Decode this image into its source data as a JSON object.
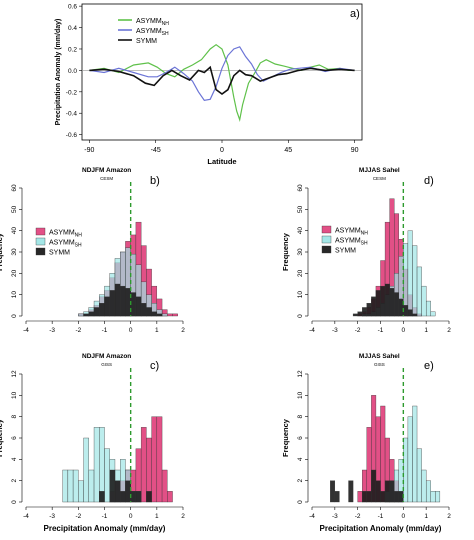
{
  "colors": {
    "nh": "#5fc14a",
    "sh": "#6b74d6",
    "symm": "#111111",
    "asym_nh": "#e0477f",
    "asym_sh": "#9fe6e6",
    "dark": "#1c1c1c",
    "dash": "#2e9a2e"
  },
  "chart_data": [
    {
      "id": "a",
      "type": "line",
      "panel_label": "a)",
      "title": "",
      "xlabel": "Latitude",
      "ylabel": "Precipitation Anomaly (mm/day)",
      "xlim": [
        -95,
        95
      ],
      "ylim": [
        -0.65,
        0.62
      ],
      "xticks": [
        -90,
        -45,
        0,
        45,
        90
      ],
      "yticks": [
        -0.6,
        -0.4,
        -0.2,
        0.0,
        0.2,
        0.4,
        0.6
      ],
      "xtick_labels": [
        "-90",
        "-45",
        "0",
        "45",
        "90"
      ],
      "ytick_labels": [
        "-0.6",
        "-0.4",
        "-0.2",
        "0.0",
        "0.2",
        "0.4",
        "0.6"
      ],
      "legend_position": "top-left",
      "series": [
        {
          "key": "nh",
          "name": "ASYMM",
          "name_sub": "NH",
          "x": [
            -90,
            -80,
            -70,
            -60,
            -50,
            -44,
            -38,
            -32,
            -26,
            -20,
            -14,
            -8,
            -4,
            0,
            4,
            8,
            10,
            12,
            14,
            18,
            22,
            26,
            30,
            36,
            42,
            48,
            54,
            60,
            66,
            72,
            80,
            86,
            90
          ],
          "y": [
            0,
            0.02,
            -0.02,
            0.05,
            0.07,
            0.03,
            -0.03,
            -0.06,
            0.01,
            0.05,
            0.1,
            0.2,
            0.24,
            0.2,
            0.05,
            -0.25,
            -0.38,
            -0.46,
            -0.32,
            -0.12,
            -0.03,
            0.07,
            0.1,
            0.06,
            0.04,
            0.02,
            0,
            0.03,
            0.05,
            0.01,
            0.02,
            0,
            0
          ]
        },
        {
          "key": "sh",
          "name": "ASYMM",
          "name_sub": "SH",
          "x": [
            -90,
            -80,
            -70,
            -60,
            -50,
            -44,
            -38,
            -32,
            -26,
            -20,
            -16,
            -12,
            -8,
            -4,
            0,
            4,
            8,
            12,
            16,
            20,
            24,
            28,
            34,
            40,
            46,
            52,
            60,
            70,
            80,
            90
          ],
          "y": [
            0,
            -0.02,
            0.02,
            -0.02,
            -0.06,
            -0.06,
            -0.02,
            0.03,
            -0.03,
            -0.1,
            -0.2,
            -0.28,
            -0.27,
            -0.15,
            0.02,
            0.14,
            0.2,
            0.22,
            0.13,
            0.06,
            -0.04,
            -0.1,
            -0.06,
            -0.02,
            0.01,
            0.02,
            0.03,
            -0.01,
            0.02,
            0
          ]
        },
        {
          "key": "symm",
          "name": "SYMM",
          "name_sub": "",
          "x": [
            -90,
            -80,
            -70,
            -60,
            -52,
            -46,
            -40,
            -34,
            -28,
            -22,
            -16,
            -12,
            -8,
            -4,
            0,
            4,
            8,
            12,
            16,
            20,
            26,
            32,
            38,
            44,
            52,
            60,
            70,
            80,
            90
          ],
          "y": [
            0,
            0.01,
            -0.01,
            -0.05,
            -0.12,
            -0.14,
            -0.05,
            0.0,
            -0.05,
            -0.09,
            0.0,
            -0.02,
            0.03,
            -0.18,
            -0.22,
            -0.18,
            -0.05,
            0.0,
            -0.04,
            -0.05,
            -0.1,
            -0.07,
            -0.04,
            -0.03,
            0,
            0.02,
            0.0,
            0.01,
            0
          ]
        }
      ]
    },
    {
      "id": "b",
      "type": "histogram",
      "panel_label": "b)",
      "title": "NDJFM Amazon",
      "subtitle": "CESM",
      "xlabel": "",
      "ylabel": "Frequency",
      "xlim": [
        -4,
        2
      ],
      "ylim": [
        0,
        60
      ],
      "xticks": [
        -4,
        -3,
        -2,
        -1,
        0,
        1,
        2
      ],
      "yticks": [
        0,
        10,
        20,
        30,
        40,
        50,
        60
      ],
      "xtick_labels": [
        "-4",
        "-3",
        "-2",
        "-1",
        "0",
        "1",
        "2"
      ],
      "ytick_labels": [
        "0",
        "10",
        "20",
        "30",
        "40",
        "50",
        "60"
      ],
      "legend_position": "left",
      "show_legend": true,
      "bin_start": -2.0,
      "bin_width": 0.2,
      "series": [
        {
          "key": "asym_nh",
          "name": "ASYMM",
          "name_sub": "NH",
          "values": [
            1,
            1,
            3,
            5,
            9,
            12,
            18,
            25,
            30,
            35,
            38,
            44,
            33,
            22,
            14,
            8,
            3,
            1,
            1,
            0
          ]
        },
        {
          "key": "asym_sh",
          "name": "ASYMM",
          "name_sub": "SH",
          "values": [
            1,
            2,
            4,
            7,
            10,
            14,
            20,
            27,
            30,
            32,
            29,
            24,
            16,
            10,
            6,
            3,
            1,
            0,
            0,
            0
          ]
        },
        {
          "key": "symm",
          "name": "SYMM",
          "name_sub": "",
          "values": [
            0,
            1,
            2,
            4,
            6,
            9,
            12,
            15,
            14,
            13,
            11,
            9,
            6,
            4,
            2,
            1,
            0,
            0,
            0,
            0
          ]
        }
      ]
    },
    {
      "id": "d",
      "type": "histogram",
      "panel_label": "d)",
      "title": "MJJAS Sahel",
      "subtitle": "CESM",
      "xlabel": "",
      "ylabel": "Frequency",
      "xlim": [
        -4,
        2
      ],
      "ylim": [
        0,
        60
      ],
      "xticks": [
        -4,
        -3,
        -2,
        -1,
        0,
        1,
        2
      ],
      "yticks": [
        0,
        10,
        20,
        30,
        40,
        50,
        60
      ],
      "xtick_labels": [
        "-4",
        "-3",
        "-2",
        "-1",
        "0",
        "1",
        "2"
      ],
      "ytick_labels": [
        "0",
        "10",
        "20",
        "30",
        "40",
        "50",
        "60"
      ],
      "legend_position": "top-left",
      "show_legend": true,
      "bin_start": -2.2,
      "bin_width": 0.2,
      "series": [
        {
          "key": "asym_nh",
          "name": "ASYMM",
          "name_sub": "NH",
          "values": [
            0,
            1,
            2,
            4,
            8,
            14,
            26,
            44,
            55,
            48,
            36,
            22,
            10,
            4,
            1,
            0,
            0,
            0
          ]
        },
        {
          "key": "asym_sh",
          "name": "ASYMM",
          "name_sub": "SH",
          "values": [
            0,
            0,
            1,
            1,
            2,
            4,
            6,
            10,
            14,
            20,
            28,
            34,
            40,
            33,
            23,
            14,
            7,
            2
          ]
        },
        {
          "key": "symm",
          "name": "SYMM",
          "name_sub": "",
          "values": [
            1,
            2,
            4,
            6,
            9,
            12,
            14,
            15,
            13,
            11,
            8,
            5,
            3,
            1,
            0,
            0,
            0,
            0
          ]
        }
      ]
    },
    {
      "id": "c",
      "type": "histogram",
      "panel_label": "c)",
      "title": "NDJFM Amazon",
      "subtitle": "GISS",
      "xlabel": "Precipitation Anomaly (mm/day)",
      "ylabel": "Frequency",
      "xlim": [
        -4,
        2
      ],
      "ylim": [
        0,
        12
      ],
      "xticks": [
        -4,
        -3,
        -2,
        -1,
        0,
        1,
        2
      ],
      "yticks": [
        0,
        2,
        4,
        6,
        8,
        10,
        12
      ],
      "xtick_labels": [
        "-4",
        "-3",
        "-2",
        "-1",
        "0",
        "1",
        "2"
      ],
      "ytick_labels": [
        "0",
        "2",
        "4",
        "6",
        "8",
        "10",
        "12"
      ],
      "show_legend": false,
      "bin_start": -2.6,
      "bin_width": 0.2,
      "series": [
        {
          "key": "asym_nh",
          "name": "ASYMM",
          "name_sub": "NH",
          "values": [
            0,
            0,
            0,
            0,
            0,
            0,
            0,
            0,
            0,
            1,
            2,
            2,
            3,
            3,
            5,
            7,
            6,
            8,
            8,
            3,
            1,
            0
          ]
        },
        {
          "key": "asym_sh",
          "name": "ASYMM",
          "name_sub": "SH",
          "values": [
            3,
            3,
            3,
            2,
            6,
            3,
            7,
            7,
            5,
            4,
            3,
            4,
            3,
            1,
            1,
            0,
            0,
            0,
            0,
            0,
            0,
            0
          ]
        },
        {
          "key": "symm",
          "name": "SYMM",
          "name_sub": "",
          "values": [
            0,
            0,
            0,
            0,
            0,
            0,
            0,
            1,
            0,
            3,
            2,
            1,
            2,
            1,
            1,
            0,
            1,
            0,
            0,
            0,
            0,
            0
          ]
        }
      ]
    },
    {
      "id": "e",
      "type": "histogram",
      "panel_label": "e)",
      "title": "MJJAS Sahel",
      "subtitle": "GISS",
      "xlabel": "Precipitation Anomaly (mm/day)",
      "ylabel": "Frequency",
      "xlim": [
        -4,
        2
      ],
      "ylim": [
        0,
        12
      ],
      "xticks": [
        -4,
        -3,
        -2,
        -1,
        0,
        1,
        2
      ],
      "yticks": [
        0,
        2,
        4,
        6,
        8,
        10,
        12
      ],
      "xtick_labels": [
        "-4",
        "-3",
        "-2",
        "-1",
        "0",
        "1",
        "2"
      ],
      "ytick_labels": [
        "0",
        "2",
        "4",
        "6",
        "8",
        "10",
        "12"
      ],
      "show_legend": false,
      "bin_start": -3.2,
      "bin_width": 0.2,
      "series": [
        {
          "key": "asym_nh",
          "name": "ASYMM",
          "name_sub": "NH",
          "values": [
            0,
            0,
            0,
            0,
            0,
            0,
            1,
            3,
            7,
            10,
            8,
            9,
            6,
            4,
            2,
            1,
            0,
            0,
            0,
            0,
            0,
            0,
            0,
            0
          ]
        },
        {
          "key": "asym_sh",
          "name": "ASYMM",
          "name_sub": "SH",
          "values": [
            0,
            0,
            0,
            0,
            0,
            0,
            0,
            0,
            0,
            0,
            0,
            0,
            1,
            2,
            3,
            4,
            6,
            8,
            9,
            5,
            3,
            2,
            1,
            1
          ]
        },
        {
          "key": "symm",
          "name": "SYMM",
          "name_sub": "",
          "values": [
            2,
            1,
            0,
            0,
            2,
            0,
            0,
            1,
            1,
            3,
            2,
            1,
            2,
            2,
            1,
            1,
            0,
            0,
            0,
            0,
            0,
            0,
            0,
            0
          ]
        }
      ]
    }
  ]
}
